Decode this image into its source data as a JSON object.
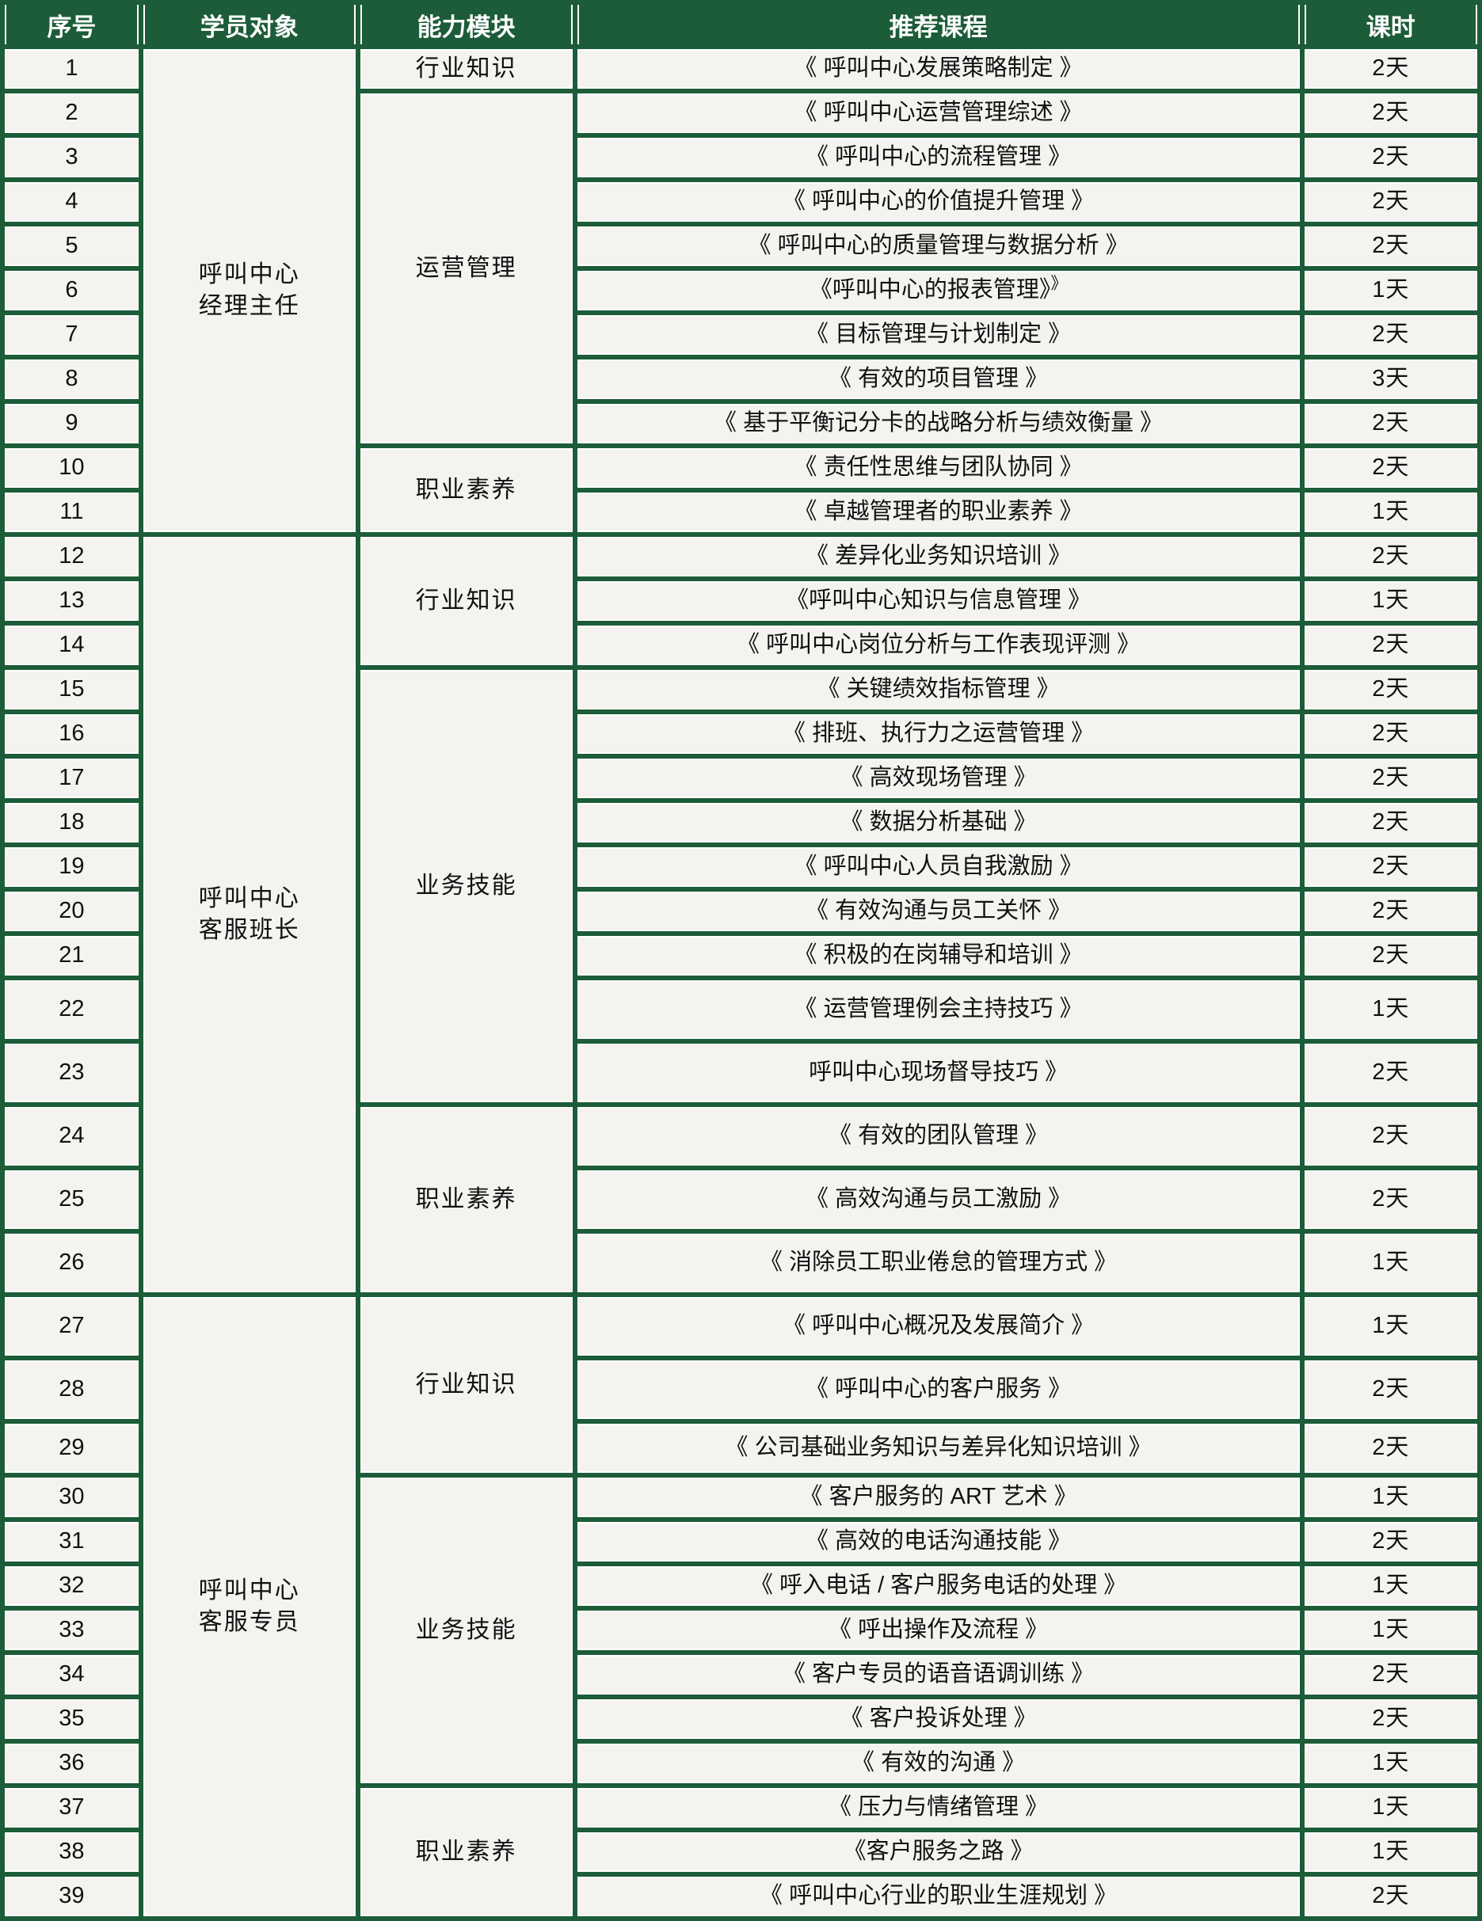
{
  "colors": {
    "grid_green": "#1C5C38",
    "cell_background": "#F4F3F0",
    "gap_white": "#FFFFFF",
    "header_text": "#FFFFFF",
    "body_text": "#111111"
  },
  "table": {
    "headers": [
      "序号",
      "学员对象",
      "能力模块",
      "推荐课程",
      "课时"
    ],
    "groups": [
      {
        "audience_lines": [
          "呼叫中心",
          "经理主任"
        ],
        "modules": [
          {
            "name": "行业知识",
            "courses": [
              {
                "no": "1",
                "title": "《 呼叫中心发展策略制定 》",
                "hours": "2天"
              }
            ]
          },
          {
            "name": "运营管理",
            "courses": [
              {
                "no": "2",
                "title": "《 呼叫中心运营管理综述 》",
                "hours": "2天"
              },
              {
                "no": "3",
                "title": "《 呼叫中心的流程管理 》",
                "hours": "2天"
              },
              {
                "no": "4",
                "title": "《 呼叫中心的价值提升管理 》",
                "hours": "2天"
              },
              {
                "no": "5",
                "title": "《 呼叫中心的质量管理与数据分析 》",
                "hours": "2天"
              },
              {
                "no": "6",
                "title": "《呼叫中心的报表管理》",
                "sup": "》",
                "hours": "1天"
              },
              {
                "no": "7",
                "title": "《 目标管理与计划制定 》",
                "hours": "2天"
              },
              {
                "no": "8",
                "title": "《 有效的项目管理 》",
                "hours": "3天"
              },
              {
                "no": "9",
                "title": "《 基于平衡记分卡的战略分析与绩效衡量 》",
                "hours": "2天"
              }
            ]
          },
          {
            "name": "职业素养",
            "courses": [
              {
                "no": "10",
                "title": "《 责任性思维与团队协同 》",
                "hours": "2天"
              },
              {
                "no": "11",
                "title": "《 卓越管理者的职业素养 》",
                "hours": "1天"
              }
            ]
          }
        ]
      },
      {
        "audience_lines": [
          "呼叫中心",
          "客服班长"
        ],
        "modules": [
          {
            "name": "行业知识",
            "courses": [
              {
                "no": "12",
                "title": "《 差异化业务知识培训 》",
                "hours": "2天"
              },
              {
                "no": "13",
                "title": "《呼叫中心知识与信息管理 》",
                "hours": "1天"
              },
              {
                "no": "14",
                "title": "《 呼叫中心岗位分析与工作表现评测 》",
                "hours": "2天"
              }
            ]
          },
          {
            "name": "业务技能",
            "courses": [
              {
                "no": "15",
                "title": "《 关键绩效指标管理 》",
                "hours": "2天"
              },
              {
                "no": "16",
                "title": "《 排班、执行力之运营管理 》",
                "hours": "2天"
              },
              {
                "no": "17",
                "title": "《 高效现场管理 》",
                "hours": "2天"
              },
              {
                "no": "18",
                "title": "《 数据分析基础 》",
                "hours": "2天"
              },
              {
                "no": "19",
                "title": "《 呼叫中心人员自我激励 》",
                "hours": "2天"
              },
              {
                "no": "20",
                "title": "《 有效沟通与员工关怀 》",
                "hours": "2天"
              },
              {
                "no": "21",
                "title": "《 积极的在岗辅导和培训 》",
                "hours": "2天"
              },
              {
                "no": "22",
                "title": "《 运营管理例会主持技巧 》",
                "hours": "1天"
              },
              {
                "no": "23",
                "title": "呼叫中心现场督导技巧 》",
                "hours": "2天"
              }
            ]
          },
          {
            "name": "职业素养",
            "courses": [
              {
                "no": "24",
                "title": "《 有效的团队管理 》",
                "hours": "2天"
              },
              {
                "no": "25",
                "title": "《 高效沟通与员工激励 》",
                "hours": "2天"
              },
              {
                "no": "26",
                "title": "《 消除员工职业倦怠的管理方式 》",
                "hours": "1天"
              }
            ]
          }
        ]
      },
      {
        "audience_lines": [
          "呼叫中心",
          "客服专员"
        ],
        "modules": [
          {
            "name": "行业知识",
            "courses": [
              {
                "no": "27",
                "title": "《 呼叫中心概况及发展简介 》",
                "hours": "1天"
              },
              {
                "no": "28",
                "title": "《 呼叫中心的客户服务 》",
                "hours": "2天"
              },
              {
                "no": "29",
                "title": "《 公司基础业务知识与差异化知识培训 》",
                "hours": "2天"
              }
            ]
          },
          {
            "name": "业务技能",
            "courses": [
              {
                "no": "30",
                "title": "《 客户服务的 ART 艺术 》",
                "hours": "1天"
              },
              {
                "no": "31",
                "title": "《 高效的电话沟通技能 》",
                "hours": "2天"
              },
              {
                "no": "32",
                "title": "《 呼入电话 / 客户服务电话的处理 》",
                "hours": "1天"
              },
              {
                "no": "33",
                "title": "《 呼出操作及流程 》",
                "hours": "1天"
              },
              {
                "no": "34",
                "title": "《 客户专员的语音语调训练 》",
                "hours": "2天"
              },
              {
                "no": "35",
                "title": "《 客户投诉处理 》",
                "hours": "2天"
              },
              {
                "no": "36",
                "title": "《 有效的沟通 》",
                "hours": "1天"
              }
            ]
          },
          {
            "name": "职业素养",
            "courses": [
              {
                "no": "37",
                "title": "《 压力与情绪管理 》",
                "hours": "1天"
              },
              {
                "no": "38",
                "title": "《客户服务之路 》",
                "hours": "1天"
              },
              {
                "no": "39",
                "title": "《 呼叫中心行业的职业生涯规划 》",
                "hours": "2天"
              }
            ]
          }
        ]
      }
    ]
  }
}
